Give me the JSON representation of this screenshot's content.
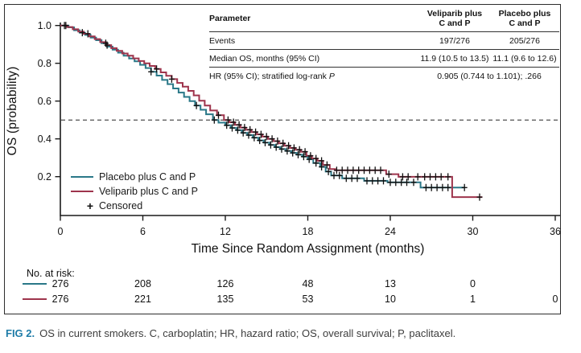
{
  "figure": {
    "caption_label": "FIG 2.",
    "caption_text": "OS in current smokers. C, carboplatin; HR, hazard ratio; OS, overall survival; P, paclitaxel."
  },
  "stats_table": {
    "header": {
      "param": "Parameter",
      "veliparib_l1": "Veliparib plus",
      "veliparib_l2": "C and P",
      "placebo_l1": "Placebo plus",
      "placebo_l2": "C and P"
    },
    "events": {
      "param": "Events",
      "veliparib": "197/276",
      "placebo": "205/276"
    },
    "median": {
      "param": "Median OS, months (95% CI)",
      "veliparib": "11.9 (10.5 to 13.5)",
      "placebo": "11.1 (9.6 to 12.6)"
    },
    "hr": {
      "param": "HR (95% CI); stratified log-rank",
      "param_italic": "P",
      "value": "0.905 (0.744 to 1.101); .266"
    }
  },
  "legend": {
    "placebo_label": "Placebo plus C and P",
    "veliparib_label": "Veliparib plus C and P",
    "censored_symbol": "+",
    "censored_label": "Censored"
  },
  "risk_table": {
    "title": "No. at risk:",
    "rows": [
      {
        "series": "placebo",
        "color": "#2A7888",
        "values": [
          "276",
          "208",
          "126",
          "48",
          "13",
          "0"
        ]
      },
      {
        "series": "veliparib",
        "color": "#9E344C",
        "values": [
          "276",
          "221",
          "135",
          "53",
          "10",
          "1",
          "0"
        ]
      }
    ]
  },
  "chart_data": {
    "type": "line",
    "subtype": "kaplan-meier-step",
    "title": "",
    "xlabel": "Time Since Random Assignment (months)",
    "ylabel": "OS (probability)",
    "xlim": [
      0,
      36
    ],
    "ylim": [
      0,
      1.02
    ],
    "x_ticks": [
      0,
      6,
      12,
      18,
      24,
      30,
      36
    ],
    "y_ticks": [
      0.2,
      0.4,
      0.6,
      0.8,
      1.0
    ],
    "grid": false,
    "reference_line_y": 0.5,
    "legend_position": "lower-left",
    "series": [
      {
        "name": "Placebo plus C and P",
        "color": "#2A7888",
        "step_points": [
          [
            0,
            1.0
          ],
          [
            0.6,
            0.99
          ],
          [
            1.0,
            0.975
          ],
          [
            1.4,
            0.962
          ],
          [
            1.8,
            0.95
          ],
          [
            2.2,
            0.936
          ],
          [
            2.6,
            0.922
          ],
          [
            3.0,
            0.906
          ],
          [
            3.4,
            0.888
          ],
          [
            3.8,
            0.872
          ],
          [
            4.2,
            0.856
          ],
          [
            4.6,
            0.84
          ],
          [
            5.0,
            0.825
          ],
          [
            5.4,
            0.81
          ],
          [
            5.8,
            0.792
          ],
          [
            6.2,
            0.775
          ],
          [
            6.6,
            0.755
          ],
          [
            7.0,
            0.735
          ],
          [
            7.4,
            0.712
          ],
          [
            7.8,
            0.69
          ],
          [
            8.2,
            0.667
          ],
          [
            8.6,
            0.645
          ],
          [
            9.0,
            0.622
          ],
          [
            9.4,
            0.6
          ],
          [
            9.8,
            0.576
          ],
          [
            10.2,
            0.554
          ],
          [
            10.6,
            0.53
          ],
          [
            11.1,
            0.5
          ],
          [
            11.5,
            0.486
          ],
          [
            12.0,
            0.472
          ],
          [
            12.4,
            0.458
          ],
          [
            12.8,
            0.446
          ],
          [
            13.2,
            0.432
          ],
          [
            13.6,
            0.42
          ],
          [
            14.0,
            0.406
          ],
          [
            14.4,
            0.392
          ],
          [
            14.8,
            0.38
          ],
          [
            15.2,
            0.368
          ],
          [
            15.6,
            0.356
          ],
          [
            16.0,
            0.346
          ],
          [
            16.4,
            0.336
          ],
          [
            16.8,
            0.326
          ],
          [
            17.2,
            0.316
          ],
          [
            17.6,
            0.306
          ],
          [
            18.0,
            0.292
          ],
          [
            18.4,
            0.272
          ],
          [
            18.9,
            0.252
          ],
          [
            19.3,
            0.227
          ],
          [
            19.7,
            0.206
          ],
          [
            20.5,
            0.191
          ],
          [
            22.1,
            0.178
          ],
          [
            23.8,
            0.17
          ],
          [
            26.2,
            0.142
          ],
          [
            29.4,
            0.142
          ]
        ],
        "censor_times": [
          0.3,
          1.6,
          3.3,
          6.6,
          9.9,
          11.2,
          12.1,
          12.5,
          12.9,
          13.3,
          13.7,
          14.1,
          14.5,
          14.9,
          15.3,
          15.7,
          16.1,
          16.5,
          16.9,
          17.3,
          17.7,
          18.1,
          18.6,
          19.0,
          19.5,
          19.9,
          20.3,
          20.8,
          21.2,
          21.6,
          22.3,
          22.7,
          23.1,
          23.5,
          24.0,
          24.4,
          24.8,
          25.2,
          25.7,
          26.6,
          27.0,
          27.4,
          27.8,
          28.2,
          29.4
        ]
      },
      {
        "name": "Veliparib plus C and P",
        "color": "#9E344C",
        "step_points": [
          [
            0,
            1.0
          ],
          [
            0.5,
            0.992
          ],
          [
            0.9,
            0.98
          ],
          [
            1.3,
            0.968
          ],
          [
            1.7,
            0.956
          ],
          [
            2.1,
            0.942
          ],
          [
            2.5,
            0.928
          ],
          [
            2.9,
            0.912
          ],
          [
            3.3,
            0.896
          ],
          [
            3.7,
            0.88
          ],
          [
            4.1,
            0.866
          ],
          [
            4.5,
            0.852
          ],
          [
            4.9,
            0.84
          ],
          [
            5.3,
            0.826
          ],
          [
            5.7,
            0.812
          ],
          [
            6.1,
            0.8
          ],
          [
            6.5,
            0.786
          ],
          [
            6.9,
            0.77
          ],
          [
            7.3,
            0.752
          ],
          [
            7.7,
            0.734
          ],
          [
            8.1,
            0.716
          ],
          [
            8.5,
            0.696
          ],
          [
            8.9,
            0.676
          ],
          [
            9.3,
            0.654
          ],
          [
            9.7,
            0.63
          ],
          [
            10.1,
            0.602
          ],
          [
            10.5,
            0.576
          ],
          [
            10.9,
            0.55
          ],
          [
            11.4,
            0.525
          ],
          [
            11.9,
            0.5
          ],
          [
            12.3,
            0.488
          ],
          [
            12.7,
            0.474
          ],
          [
            13.1,
            0.46
          ],
          [
            13.5,
            0.448
          ],
          [
            13.9,
            0.436
          ],
          [
            14.3,
            0.424
          ],
          [
            14.7,
            0.412
          ],
          [
            15.1,
            0.4
          ],
          [
            15.5,
            0.388
          ],
          [
            15.9,
            0.376
          ],
          [
            16.3,
            0.364
          ],
          [
            16.7,
            0.352
          ],
          [
            17.1,
            0.342
          ],
          [
            17.5,
            0.332
          ],
          [
            17.9,
            0.31
          ],
          [
            18.3,
            0.296
          ],
          [
            18.7,
            0.284
          ],
          [
            19.1,
            0.262
          ],
          [
            19.6,
            0.24
          ],
          [
            20.0,
            0.234
          ],
          [
            23.7,
            0.213
          ],
          [
            24.6,
            0.199
          ],
          [
            28.5,
            0.092
          ],
          [
            30.7,
            0.092
          ]
        ],
        "censor_times": [
          0.4,
          2.0,
          3.4,
          7.0,
          8.1,
          11.5,
          12.2,
          12.6,
          13.0,
          13.4,
          13.8,
          14.2,
          14.6,
          15.0,
          15.4,
          15.8,
          16.2,
          16.6,
          17.0,
          17.4,
          17.8,
          18.2,
          18.6,
          19.0,
          19.4,
          20.1,
          20.5,
          20.9,
          21.3,
          21.7,
          22.1,
          22.5,
          22.9,
          23.3,
          23.9,
          24.9,
          25.3,
          26.0,
          26.5,
          26.9,
          27.3,
          27.7,
          28.2,
          30.5
        ]
      }
    ]
  }
}
